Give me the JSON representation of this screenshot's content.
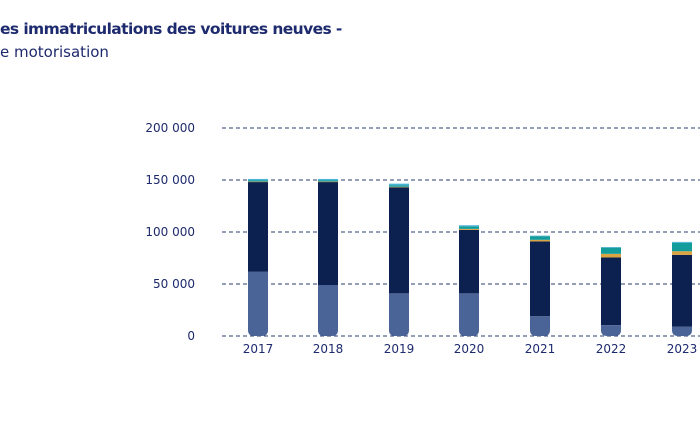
{
  "chart_data": {
    "type": "bar",
    "stacked": true,
    "title_line1": "es immatriculations des voitures neuves -",
    "title_line2": "e motorisation",
    "categories": [
      "2017",
      "2018",
      "2019",
      "2020",
      "2021",
      "2022",
      "2023"
    ],
    "ylim": [
      0,
      200000
    ],
    "yticks": [
      0,
      50000,
      100000,
      150000,
      200000
    ],
    "ytick_labels": [
      "0",
      "50 000",
      "100 000",
      "150 000",
      "200 000"
    ],
    "grid": "horizontal dashed",
    "legend": "none visible",
    "series": [
      {
        "color": "#4a6498",
        "values": [
          62000,
          49000,
          41000,
          41000,
          19000,
          10500,
          9000
        ]
      },
      {
        "color": "#0c214f",
        "values": [
          86000,
          99000,
          102000,
          61000,
          72000,
          65000,
          69000
        ]
      },
      {
        "color": "#d9a441",
        "values": [
          500,
          500,
          500,
          1000,
          1500,
          3500,
          3500
        ]
      },
      {
        "color": "#129c9c",
        "values": [
          1000,
          1000,
          1500,
          2500,
          3500,
          6000,
          8000
        ]
      },
      {
        "color": "#4bb3d6",
        "values": [
          1500,
          1500,
          1500,
          1000,
          500,
          500,
          1000
        ]
      }
    ]
  }
}
